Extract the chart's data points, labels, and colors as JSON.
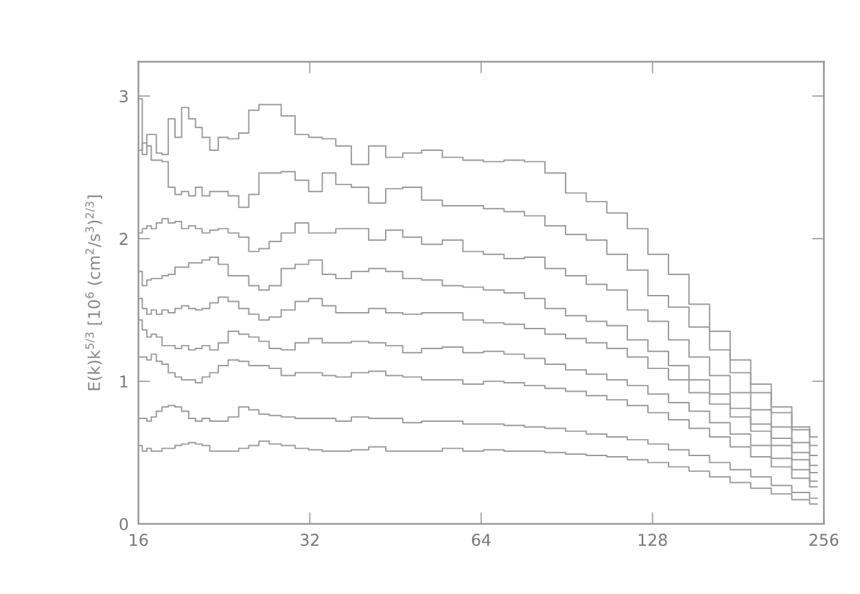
{
  "chart_data": {
    "type": "step",
    "ylabel": "E(k)k$^{5/3}$ [10$^{6}$ (cm$^{2}$/s$^{3}$)$^{2/3}$]",
    "log": "x",
    "xlim": [
      16,
      256
    ],
    "xticks": [
      16,
      32,
      64,
      128,
      256
    ],
    "ylim": [
      0,
      3.24
    ],
    "yticks": [
      0,
      1,
      2,
      3
    ],
    "x": [
      16.1,
      16.4,
      16.7,
      17,
      17.4,
      17.8,
      18.3,
      18.8,
      19.3,
      19.9,
      20.4,
      21,
      21.7,
      22.5,
      23.5,
      24.5,
      25.5,
      26.6,
      27.7,
      29.3,
      31,
      32.7,
      34.6,
      36.5,
      39.2,
      42,
      45,
      48.2,
      52.4,
      57,
      61.9,
      67.3,
      73.1,
      79.4,
      86.3,
      93.8,
      102,
      110.8,
      120.4,
      130.9,
      142.2,
      154.5,
      167.9,
      182.5,
      198.3,
      215.5,
      234.2,
      249.1
    ],
    "series": [
      {
        "color": "#9a9a9a",
        "values": [
          2.98,
          2.59,
          2.73,
          2.73,
          2.6,
          2.59,
          2.84,
          2.71,
          2.92,
          2.84,
          2.78,
          2.71,
          2.62,
          2.71,
          2.7,
          2.74,
          2.9,
          2.94,
          2.94,
          2.86,
          2.73,
          2.71,
          2.7,
          2.65,
          2.52,
          2.65,
          2.57,
          2.6,
          2.62,
          2.57,
          2.55,
          2.54,
          2.55,
          2.54,
          2.46,
          2.32,
          2.26,
          2.18,
          2.07,
          1.89,
          1.75,
          1.54,
          1.35,
          1.15,
          0.98,
          0.82,
          0.68,
          0.61
        ]
      },
      {
        "color": "#9a9a9a",
        "values": [
          2.62,
          2.67,
          2.65,
          2.55,
          2.55,
          2.54,
          2.36,
          2.31,
          2.33,
          2.3,
          2.36,
          2.3,
          2.33,
          2.33,
          2.3,
          2.22,
          2.31,
          2.46,
          2.46,
          2.47,
          2.41,
          2.33,
          2.46,
          2.38,
          2.36,
          2.25,
          2.35,
          2.36,
          2.27,
          2.23,
          2.23,
          2.21,
          2.19,
          2.16,
          2.09,
          2.03,
          1.99,
          1.89,
          1.78,
          1.6,
          1.52,
          1.38,
          1.22,
          1.06,
          0.92,
          0.78,
          0.66,
          0.55
        ]
      },
      {
        "color": "#9a9a9a",
        "values": [
          2.04,
          2.07,
          2.09,
          2.07,
          2.11,
          2.14,
          2.11,
          2.12,
          2.07,
          2.09,
          2.07,
          2.04,
          2.06,
          2.07,
          2.04,
          2.01,
          1.91,
          1.93,
          1.98,
          2.04,
          2.11,
          2.04,
          2.04,
          2.07,
          2.07,
          1.99,
          2.06,
          2.01,
          1.96,
          1.99,
          1.91,
          1.89,
          1.86,
          1.87,
          1.79,
          1.74,
          1.68,
          1.64,
          1.5,
          1.42,
          1.29,
          1.17,
          1.04,
          0.92,
          0.8,
          0.68,
          0.57,
          0.48
        ]
      },
      {
        "color": "#9a9a9a",
        "values": [
          1.77,
          1.67,
          1.71,
          1.72,
          1.72,
          1.74,
          1.75,
          1.8,
          1.8,
          1.83,
          1.83,
          1.85,
          1.87,
          1.82,
          1.74,
          1.74,
          1.67,
          1.64,
          1.67,
          1.79,
          1.82,
          1.85,
          1.75,
          1.72,
          1.77,
          1.79,
          1.77,
          1.72,
          1.71,
          1.67,
          1.66,
          1.64,
          1.62,
          1.58,
          1.51,
          1.46,
          1.42,
          1.39,
          1.29,
          1.21,
          1.11,
          1.01,
          0.91,
          0.81,
          0.7,
          0.6,
          0.5,
          0.41
        ]
      },
      {
        "color": "#9a9a9a",
        "values": [
          1.58,
          1.51,
          1.47,
          1.5,
          1.47,
          1.5,
          1.48,
          1.51,
          1.53,
          1.51,
          1.5,
          1.51,
          1.55,
          1.59,
          1.56,
          1.51,
          1.47,
          1.43,
          1.45,
          1.5,
          1.56,
          1.58,
          1.53,
          1.48,
          1.48,
          1.51,
          1.48,
          1.47,
          1.48,
          1.48,
          1.43,
          1.41,
          1.4,
          1.37,
          1.33,
          1.3,
          1.27,
          1.23,
          1.17,
          1.09,
          1.01,
          0.92,
          0.84,
          0.75,
          0.65,
          0.55,
          0.45,
          0.36
        ]
      },
      {
        "color": "#9a9a9a",
        "values": [
          1.43,
          1.36,
          1.31,
          1.33,
          1.31,
          1.25,
          1.25,
          1.23,
          1.25,
          1.22,
          1.23,
          1.25,
          1.22,
          1.27,
          1.35,
          1.33,
          1.31,
          1.28,
          1.23,
          1.22,
          1.27,
          1.3,
          1.27,
          1.27,
          1.28,
          1.27,
          1.25,
          1.2,
          1.23,
          1.24,
          1.2,
          1.21,
          1.19,
          1.16,
          1.12,
          1.08,
          1.05,
          1.01,
          0.97,
          0.91,
          0.85,
          0.79,
          0.71,
          0.63,
          0.55,
          0.46,
          0.38,
          0.3
        ]
      },
      {
        "color": "#9a9a9a",
        "values": [
          1.17,
          1.17,
          1.15,
          1.19,
          1.14,
          1.12,
          1.06,
          1.03,
          1.01,
          1.01,
          0.99,
          1.03,
          1.06,
          1.11,
          1.15,
          1.14,
          1.11,
          1.11,
          1.09,
          1.04,
          1.06,
          1.06,
          1.04,
          1.03,
          1.06,
          1.07,
          1.04,
          1.03,
          1.01,
          1.01,
          0.98,
          1.0,
          0.99,
          0.97,
          0.95,
          0.93,
          0.9,
          0.87,
          0.83,
          0.78,
          0.73,
          0.67,
          0.61,
          0.54,
          0.47,
          0.4,
          0.32,
          0.26
        ]
      },
      {
        "color": "#9a9a9a",
        "values": [
          0.74,
          0.74,
          0.72,
          0.75,
          0.79,
          0.82,
          0.83,
          0.82,
          0.79,
          0.74,
          0.72,
          0.74,
          0.72,
          0.72,
          0.75,
          0.82,
          0.8,
          0.77,
          0.76,
          0.75,
          0.74,
          0.74,
          0.74,
          0.72,
          0.75,
          0.74,
          0.74,
          0.71,
          0.72,
          0.72,
          0.7,
          0.7,
          0.69,
          0.68,
          0.67,
          0.65,
          0.63,
          0.61,
          0.59,
          0.56,
          0.52,
          0.48,
          0.43,
          0.38,
          0.33,
          0.27,
          0.22,
          0.18
        ]
      },
      {
        "color": "#9a9a9a",
        "values": [
          0.55,
          0.51,
          0.53,
          0.51,
          0.51,
          0.53,
          0.53,
          0.55,
          0.56,
          0.57,
          0.56,
          0.55,
          0.51,
          0.51,
          0.51,
          0.53,
          0.55,
          0.58,
          0.56,
          0.55,
          0.53,
          0.52,
          0.51,
          0.51,
          0.52,
          0.54,
          0.51,
          0.51,
          0.51,
          0.53,
          0.51,
          0.52,
          0.51,
          0.51,
          0.5,
          0.49,
          0.48,
          0.47,
          0.45,
          0.43,
          0.4,
          0.37,
          0.33,
          0.29,
          0.25,
          0.21,
          0.17,
          0.14
        ]
      }
    ]
  }
}
